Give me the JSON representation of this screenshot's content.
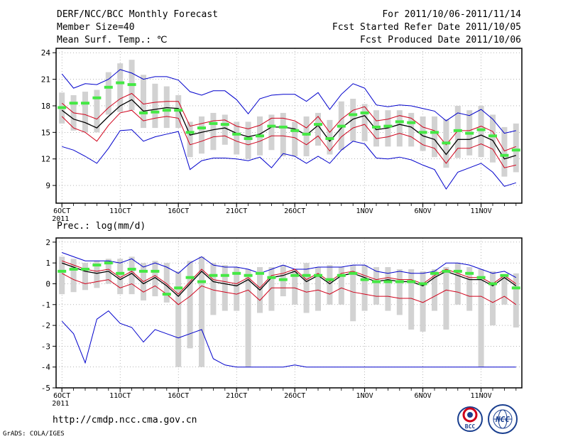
{
  "header": {
    "title": "DERF/NCC/BCC Monthly Forecast",
    "member_size": "Member Size=40",
    "variable": "Mean Surf. Temp.: ℃",
    "period": "For 2011/10/06-2011/11/14",
    "refer_date": "Fcst Started Refer Date 2011/10/05",
    "produced_date": "Fcst Produced Date 2011/10/06"
  },
  "footer": {
    "url": "http://cmdp.ncc.cma.gov.cn",
    "credit": "GrADS: COLA/IGES",
    "logo_bcc": "BCC",
    "logo_ncc": "NCC"
  },
  "colors": {
    "box": "#d2d2d2",
    "ensemble_mean": "#000000",
    "inner_range": "#d0021b",
    "outer_range": "#0000cc",
    "marker": "#44e844",
    "axis": "#000000",
    "grid": "#888888"
  },
  "chart_data": [
    {
      "type": "line",
      "title": "Mean Surf. Temp.: ℃",
      "x": [
        0,
        1,
        2,
        3,
        4,
        5,
        6,
        7,
        8,
        9,
        10,
        11,
        12,
        13,
        14,
        15,
        16,
        17,
        18,
        19,
        20,
        21,
        22,
        23,
        24,
        25,
        26,
        27,
        28,
        29,
        30,
        31,
        32,
        33,
        34,
        35,
        36,
        37,
        38,
        39
      ],
      "xticks": [
        {
          "i": 0,
          "label": "6OCT",
          "sublabel": "2011"
        },
        {
          "i": 5,
          "label": "11OCT"
        },
        {
          "i": 10,
          "label": "16OCT"
        },
        {
          "i": 15,
          "label": "21OCT"
        },
        {
          "i": 20,
          "label": "26OCT"
        },
        {
          "i": 26,
          "label": "1NOV"
        },
        {
          "i": 31,
          "label": "6NOV"
        },
        {
          "i": 36,
          "label": "11NOV"
        }
      ],
      "xlim": [
        -0.5,
        39.5
      ],
      "ylim": [
        7,
        24.5
      ],
      "yticks": [
        9,
        12,
        15,
        18,
        21,
        24
      ],
      "grid": true,
      "series": [
        {
          "name": "box_high",
          "values": [
            19.5,
            19.2,
            19.6,
            19.8,
            21.8,
            22.8,
            23.2,
            21.5,
            20.5,
            20.2,
            19.2,
            16.2,
            16.8,
            17.2,
            17.0,
            16.2,
            16.2,
            16.8,
            17.0,
            17.2,
            16.2,
            16.8,
            17.2,
            16.4,
            18.5,
            18.8,
            18.2,
            17.5,
            17.5,
            17.5,
            17.2,
            16.8,
            16.8,
            16.5,
            18.0,
            17.5,
            18.0,
            17.0,
            15.6,
            16.0
          ]
        },
        {
          "name": "box_low",
          "values": [
            16.0,
            15.2,
            15.0,
            15.0,
            17.0,
            17.3,
            17.5,
            15.5,
            15.5,
            15.5,
            15.5,
            12.2,
            12.6,
            13.0,
            13.6,
            12.5,
            12.0,
            12.4,
            13.0,
            12.3,
            12.3,
            12.3,
            13.5,
            12.5,
            13.0,
            14.0,
            14.0,
            13.4,
            13.4,
            13.4,
            13.4,
            12.9,
            12.2,
            11.0,
            12.1,
            12.4,
            12.2,
            11.6,
            10.0,
            10.5
          ]
        },
        {
          "name": "ensemble_mean",
          "values": [
            17.5,
            16.5,
            16.1,
            15.5,
            16.8,
            18.0,
            18.7,
            17.4,
            17.6,
            17.8,
            17.7,
            14.7,
            15.0,
            15.3,
            15.5,
            14.9,
            14.5,
            14.8,
            15.6,
            15.6,
            15.4,
            14.7,
            15.8,
            14.0,
            15.5,
            16.5,
            16.9,
            15.3,
            15.5,
            15.9,
            15.6,
            14.6,
            14.2,
            12.5,
            14.2,
            14.2,
            14.7,
            14.1,
            12.0,
            12.4
          ]
        },
        {
          "name": "inner_high",
          "values": [
            18.3,
            17.2,
            17.0,
            16.5,
            17.8,
            18.8,
            19.4,
            18.2,
            18.4,
            18.5,
            18.5,
            15.7,
            16.0,
            16.3,
            16.4,
            15.7,
            15.4,
            15.8,
            16.6,
            16.6,
            16.3,
            15.5,
            16.8,
            15.0,
            16.5,
            17.5,
            17.9,
            16.3,
            16.5,
            16.9,
            16.6,
            15.6,
            15.2,
            13.6,
            15.2,
            15.2,
            15.7,
            15.1,
            12.9,
            13.4
          ]
        },
        {
          "name": "inner_low",
          "values": [
            16.8,
            15.5,
            15.0,
            14.0,
            15.8,
            17.2,
            17.5,
            16.3,
            16.6,
            16.8,
            16.6,
            13.6,
            14.0,
            14.5,
            14.6,
            14.0,
            13.6,
            14.0,
            14.6,
            14.6,
            14.4,
            13.6,
            14.6,
            12.9,
            14.5,
            15.5,
            15.9,
            14.3,
            14.5,
            14.9,
            14.5,
            13.6,
            13.2,
            11.5,
            13.2,
            13.2,
            13.7,
            13.1,
            11.0,
            11.3
          ]
        },
        {
          "name": "outer_high",
          "values": [
            21.6,
            20.0,
            20.5,
            20.4,
            21.0,
            22.1,
            21.7,
            21.0,
            21.3,
            21.3,
            20.9,
            19.6,
            19.2,
            19.7,
            19.7,
            18.7,
            17.1,
            18.8,
            19.2,
            19.3,
            19.3,
            18.5,
            19.5,
            17.6,
            19.3,
            20.5,
            20.0,
            18.1,
            17.9,
            18.1,
            18.0,
            17.7,
            17.4,
            16.3,
            17.2,
            16.9,
            17.6,
            16.5,
            14.9,
            15.2
          ]
        },
        {
          "name": "outer_low",
          "values": [
            13.4,
            13.0,
            12.3,
            11.5,
            13.2,
            15.2,
            15.3,
            14.0,
            14.5,
            14.8,
            15.1,
            10.8,
            11.8,
            12.1,
            12.1,
            12.0,
            11.8,
            12.2,
            11.0,
            12.6,
            12.3,
            11.5,
            12.3,
            11.5,
            13.0,
            14.0,
            13.7,
            12.1,
            12.0,
            12.2,
            11.9,
            11.3,
            10.8,
            8.6,
            10.5,
            11.0,
            11.5,
            10.5,
            8.9,
            9.3
          ]
        },
        {
          "name": "markers",
          "values": [
            17.8,
            18.3,
            18.3,
            18.9,
            20.1,
            20.6,
            20.4,
            17.2,
            17.3,
            17.5,
            17.5,
            15.0,
            15.5,
            16.0,
            15.9,
            14.8,
            14.3,
            14.6,
            15.7,
            15.6,
            15.2,
            14.8,
            15.9,
            14.3,
            15.7,
            17.0,
            17.2,
            15.6,
            15.7,
            16.2,
            16.1,
            15.0,
            15.0,
            13.8,
            15.2,
            14.9,
            15.3,
            14.6,
            12.4,
            13.0
          ]
        }
      ]
    },
    {
      "type": "line",
      "title": "Prec.: log(mm/d)",
      "x": [
        0,
        1,
        2,
        3,
        4,
        5,
        6,
        7,
        8,
        9,
        10,
        11,
        12,
        13,
        14,
        15,
        16,
        17,
        18,
        19,
        20,
        21,
        22,
        23,
        24,
        25,
        26,
        27,
        28,
        29,
        30,
        31,
        32,
        33,
        34,
        35,
        36,
        37,
        38,
        39
      ],
      "xticks": [
        {
          "i": 0,
          "label": "6OCT",
          "sublabel": "2011"
        },
        {
          "i": 5,
          "label": "11OCT"
        },
        {
          "i": 10,
          "label": "16OCT"
        },
        {
          "i": 15,
          "label": "21OCT"
        },
        {
          "i": 20,
          "label": "26OCT"
        },
        {
          "i": 26,
          "label": "1NOV"
        },
        {
          "i": 31,
          "label": "6NOV"
        },
        {
          "i": 36,
          "label": "11NOV"
        }
      ],
      "xlim": [
        -0.5,
        39.5
      ],
      "ylim": [
        -5,
        2.2
      ],
      "yticks": [
        -5,
        -4,
        -3,
        -2,
        -1,
        0,
        1,
        2
      ],
      "grid": true,
      "series": [
        {
          "name": "box_high",
          "values": [
            1.3,
            1.2,
            1.0,
            1.1,
            1.2,
            1.2,
            1.3,
            1.0,
            1.1,
            1.0,
            0.6,
            1.1,
            1.3,
            1.0,
            0.9,
            0.8,
            0.7,
            0.8,
            0.8,
            0.9,
            0.7,
            1.0,
            0.8,
            0.9,
            0.8,
            0.9,
            0.9,
            0.8,
            0.8,
            0.7,
            0.7,
            0.6,
            0.7,
            0.8,
            1.0,
            0.8,
            0.7,
            0.6,
            0.4,
            0.5
          ]
        },
        {
          "name": "box_low",
          "values": [
            -0.5,
            -0.4,
            -0.3,
            -0.2,
            0.0,
            -0.5,
            -0.5,
            -0.8,
            -0.6,
            -0.9,
            -4.0,
            -3.1,
            -4.0,
            -1.5,
            -1.3,
            -1.3,
            -4.0,
            -1.4,
            -1.3,
            -0.6,
            -1.0,
            -1.4,
            -1.3,
            -1.0,
            -1.0,
            -1.8,
            -1.3,
            -1.0,
            -1.3,
            -1.5,
            -2.2,
            -2.3,
            -1.3,
            -2.2,
            -1.0,
            -1.3,
            -4.0,
            -2.0,
            -1.0,
            -2.1
          ]
        },
        {
          "name": "ensemble_mean",
          "values": [
            1.0,
            0.8,
            0.6,
            0.5,
            0.6,
            0.2,
            0.5,
            0.0,
            0.3,
            -0.1,
            -0.6,
            0.0,
            0.6,
            0.1,
            0.0,
            -0.1,
            0.2,
            -0.3,
            0.3,
            0.4,
            0.6,
            0.1,
            0.4,
            0.0,
            0.4,
            0.5,
            0.3,
            0.1,
            0.2,
            0.1,
            0.1,
            -0.1,
            0.3,
            0.6,
            0.4,
            0.2,
            0.2,
            -0.1,
            0.3,
            -0.1
          ]
        },
        {
          "name": "inner_high",
          "values": [
            1.1,
            0.9,
            0.7,
            0.6,
            0.7,
            0.3,
            0.6,
            0.1,
            0.4,
            0.0,
            -0.5,
            0.1,
            0.7,
            0.2,
            0.1,
            0.0,
            0.3,
            -0.2,
            0.4,
            0.5,
            0.7,
            0.2,
            0.5,
            0.1,
            0.5,
            0.6,
            0.4,
            0.2,
            0.3,
            0.2,
            0.2,
            0.0,
            0.4,
            0.7,
            0.5,
            0.3,
            0.3,
            0.0,
            0.4,
            0.0
          ]
        },
        {
          "name": "inner_low",
          "values": [
            0.5,
            0.2,
            0.0,
            0.1,
            0.2,
            -0.2,
            0.0,
            -0.4,
            -0.1,
            -0.5,
            -1.0,
            -0.6,
            -0.1,
            -0.3,
            -0.4,
            -0.5,
            -0.3,
            -0.8,
            -0.2,
            -0.2,
            -0.2,
            -0.4,
            -0.3,
            -0.5,
            -0.2,
            -0.4,
            -0.5,
            -0.6,
            -0.6,
            -0.7,
            -0.7,
            -0.9,
            -0.6,
            -0.3,
            -0.4,
            -0.6,
            -0.6,
            -0.9,
            -0.6,
            -1.0
          ]
        },
        {
          "name": "outer_high",
          "values": [
            1.5,
            1.3,
            1.1,
            1.1,
            1.1,
            1.0,
            1.2,
            0.8,
            1.0,
            0.8,
            0.5,
            1.0,
            1.3,
            0.9,
            0.8,
            0.8,
            0.7,
            0.5,
            0.7,
            0.9,
            0.7,
            0.7,
            0.8,
            0.8,
            0.8,
            0.9,
            0.9,
            0.6,
            0.5,
            0.6,
            0.5,
            0.5,
            0.6,
            1.0,
            1.0,
            0.9,
            0.7,
            0.5,
            0.6,
            0.3
          ]
        },
        {
          "name": "outer_low",
          "values": [
            -1.8,
            -2.4,
            -3.8,
            -1.7,
            -1.3,
            -1.9,
            -2.1,
            -2.8,
            -2.2,
            -2.4,
            -2.6,
            -2.4,
            -2.2,
            -3.6,
            -3.9,
            -4.0,
            -4.0,
            -4.0,
            -4.0,
            -4.0,
            -3.9,
            -4.0,
            -4.0,
            -4.0,
            -4.0,
            -4.0,
            -4.0,
            -4.0,
            -4.0,
            -4.0,
            -4.0,
            -4.0,
            -4.0,
            -4.0,
            -4.0,
            -4.0,
            -4.0,
            -4.0,
            -4.0,
            -4.0
          ]
        },
        {
          "name": "markers",
          "values": [
            0.6,
            0.7,
            0.7,
            0.9,
            1.0,
            0.5,
            0.7,
            0.6,
            0.6,
            -0.5,
            -0.2,
            0.3,
            0.1,
            0.4,
            0.4,
            0.5,
            0.4,
            0.5,
            0.3,
            0.2,
            0.4,
            0.4,
            0.4,
            0.2,
            0.4,
            0.5,
            0.2,
            0.1,
            0.1,
            0.1,
            0.1,
            0.0,
            0.5,
            0.6,
            0.6,
            0.5,
            0.3,
            0.0,
            0.4,
            -0.2
          ]
        }
      ]
    }
  ]
}
